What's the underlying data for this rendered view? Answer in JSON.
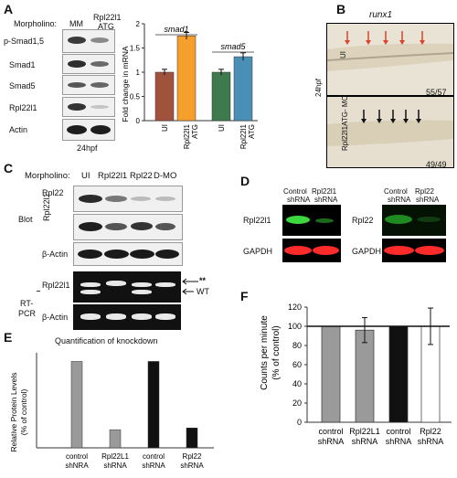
{
  "panels": {
    "A": {
      "letter": "A",
      "morpholino_label": "Morpholino:",
      "lanes": [
        "MM",
        "Rpl22l1\nATG"
      ],
      "lane1": "MM",
      "lane2a": "Rpl22l1",
      "lane2b": "ATG",
      "rows": [
        "p-Smad1,5",
        "Smad1",
        "Smad5",
        "Rpl22l1",
        "Actin"
      ],
      "stage": "24hpf",
      "chart": {
        "groups": [
          "smad1",
          "smad5"
        ],
        "ylabel": "Fold change in mRNA",
        "ticks": [
          "0",
          "0.5",
          "1",
          "1.5",
          "2"
        ],
        "xlabels": [
          [
            "UI"
          ],
          [
            "Rpl22l1",
            "ATG"
          ],
          [
            "UI"
          ],
          [
            "Rpl22l1",
            "ATG"
          ]
        ]
      }
    },
    "B": {
      "letter": "B",
      "title": "runx1",
      "side": "24hpf",
      "top_label": "UI",
      "top_count": "55/57",
      "bottom_label": "Rpl22l1ATG- MO",
      "bottom_count": "49/49"
    },
    "C": {
      "letter": "C",
      "morpholino_label": "Morpholino:",
      "lanes": [
        "UI",
        "Rpl22l1",
        "Rpl22",
        "D-MO"
      ],
      "blot_label": "Blot",
      "blot_rows": [
        "Rpl22",
        "Rpl22l1",
        "β-Actin"
      ],
      "rtpcr_label_1": "RT-",
      "rtpcr_label_2": "PCR",
      "rtpcr_rows": [
        "Rpl22l1",
        "β-Actin"
      ],
      "marker_star": "**",
      "marker_wt": "WT"
    },
    "D": {
      "letter": "D",
      "left": {
        "lanes": [
          [
            "Control",
            "shRNA"
          ],
          [
            "Rpl22l1",
            "shRNA"
          ]
        ],
        "rows": [
          "Rpl22l1",
          "GAPDH"
        ]
      },
      "right": {
        "lanes": [
          [
            "Control",
            "shRNA"
          ],
          [
            "Rpl22",
            "shRNA"
          ]
        ],
        "rows": [
          "Rpl22",
          "GAPDH"
        ]
      }
    },
    "E": {
      "letter": "E",
      "title": "Quantification of knockdown",
      "ylabel": [
        "Relative Protein Levels",
        "(% of control)"
      ]
    },
    "F": {
      "letter": "F",
      "ylabel": [
        "Counts per minute",
        "(% of control)"
      ]
    }
  },
  "chart_data": [
    {
      "type": "bar",
      "panel": "A",
      "title": "",
      "ylabel": "Fold change in mRNA",
      "ylim": [
        0,
        2
      ],
      "categories": [
        "UI (smad1)",
        "Rpl22l1 ATG (smad1)",
        "UI (smad5)",
        "Rpl22l1 ATG (smad5)"
      ],
      "values": [
        1.0,
        1.75,
        1.0,
        1.32
      ],
      "errors": [
        0.06,
        0.07,
        0.06,
        0.08
      ],
      "colors": [
        "#a0523d",
        "#f5a02d",
        "#3d7a4e",
        "#4a8fb5"
      ],
      "group_labels": [
        "smad1",
        "smad5"
      ]
    },
    {
      "type": "bar",
      "panel": "E",
      "title": "Quantification of knockdown",
      "ylabel": "Relative Protein Levels (% of control)",
      "categories": [
        "control shNRA",
        "Rpl22L1 shRNA",
        "control shRNA",
        "Rpl22 shRNA"
      ],
      "xlabels": [
        [
          "control",
          "shNRA"
        ],
        [
          "Rpl22L1",
          "shRNA"
        ],
        [
          "control",
          "shRNA"
        ],
        [
          "Rpl22",
          "shRNA"
        ]
      ],
      "values": [
        100,
        21,
        100,
        23
      ],
      "colors": [
        "#9a9a9a",
        "#9a9a9a",
        "#111111",
        "#111111"
      ],
      "ylim": [
        0,
        110
      ]
    },
    {
      "type": "bar",
      "panel": "F",
      "title": "",
      "ylabel": "Counts per minute (% of control)",
      "categories": [
        "control shRNA",
        "Rpl22L1 shRNA",
        "control shRNA",
        "Rpl22 shRNA"
      ],
      "xlabels": [
        [
          "control",
          "shRNA"
        ],
        [
          "Rpl22L1",
          "shRNA"
        ],
        [
          "control",
          "shRNA"
        ],
        [
          "Rpl22",
          "shRNA"
        ]
      ],
      "values": [
        100,
        96,
        100,
        100
      ],
      "errors": [
        0,
        13,
        0,
        19
      ],
      "colors": [
        "#9a9a9a",
        "#9a9a9a",
        "#111111",
        "#ffffff"
      ],
      "ylim": [
        0,
        120
      ],
      "ticks": [
        0,
        20,
        40,
        60,
        80,
        100,
        120
      ],
      "reference_line": 100
    }
  ]
}
